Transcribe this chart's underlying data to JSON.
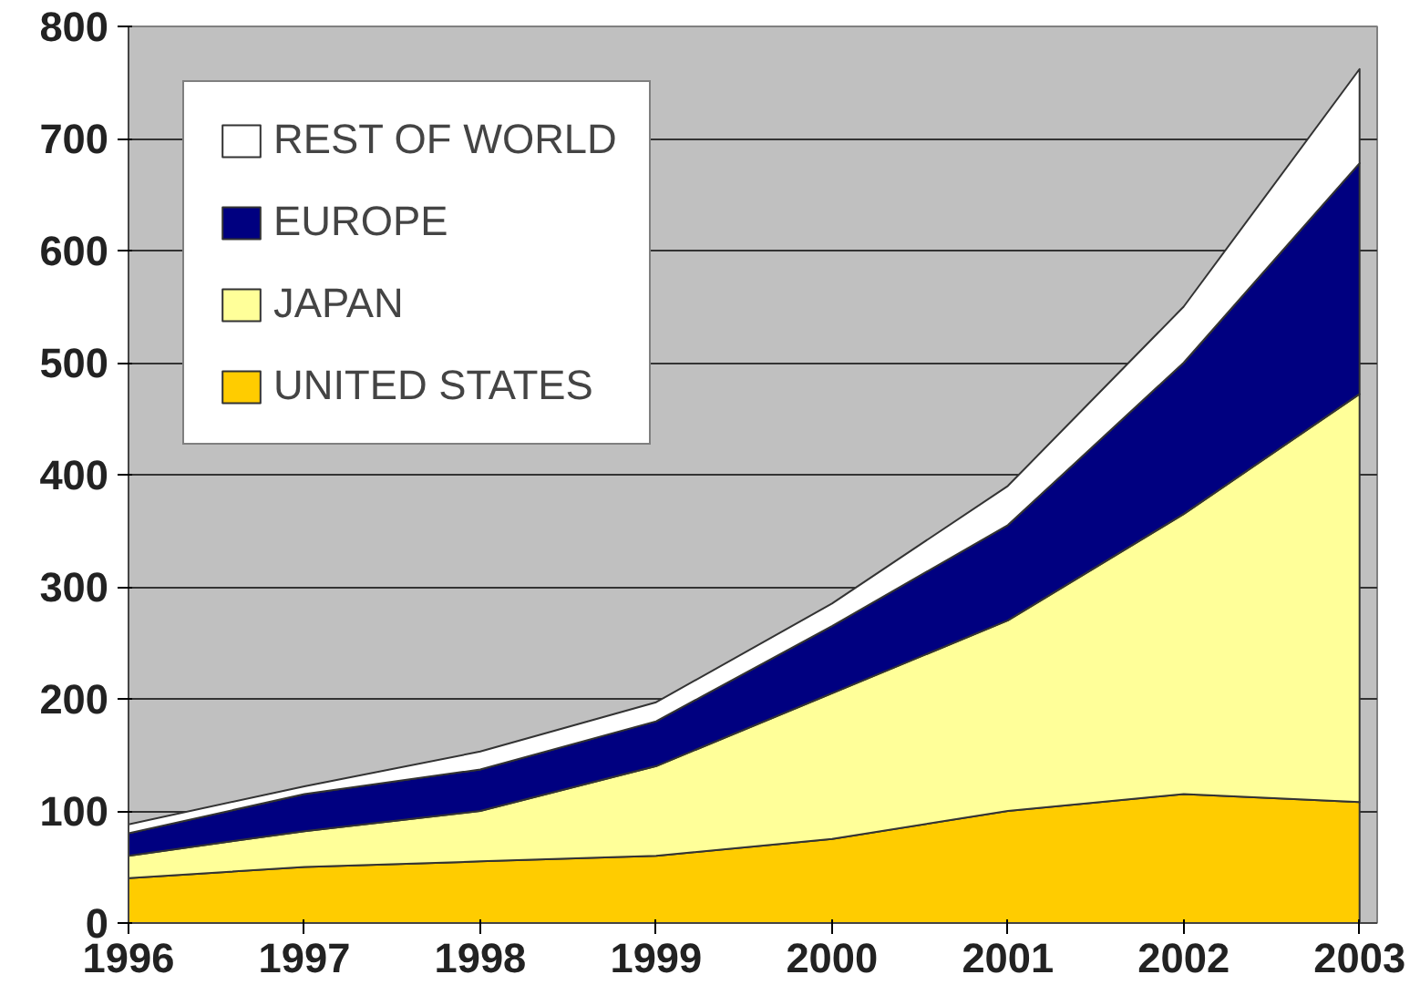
{
  "chart_data": {
    "type": "area",
    "stacked": true,
    "x": [
      1996,
      1997,
      1998,
      1999,
      2000,
      2001,
      2002,
      2003
    ],
    "series": [
      {
        "name": "UNITED STATES",
        "color": "#ffcc00",
        "values": [
          40,
          50,
          55,
          60,
          75,
          100,
          115,
          108
        ]
      },
      {
        "name": "JAPAN",
        "color": "#ffff99",
        "values": [
          20,
          32,
          45,
          80,
          130,
          170,
          250,
          364
        ]
      },
      {
        "name": "EUROPE",
        "color": "#000080",
        "values": [
          20,
          33,
          37,
          40,
          60,
          85,
          135,
          206
        ]
      },
      {
        "name": "REST OF WORLD",
        "color": "#ffffff",
        "values": [
          8,
          7,
          16,
          17,
          20,
          35,
          50,
          84
        ]
      }
    ],
    "xlim": [
      1996,
      2003.1
    ],
    "xticks": [
      1996,
      1997,
      1998,
      1999,
      2000,
      2001,
      2002,
      2003
    ],
    "ylim": [
      0,
      800
    ],
    "yticks": [
      0,
      100,
      200,
      300,
      400,
      500,
      600,
      700,
      800
    ],
    "grid": "y",
    "legend": "top left"
  }
}
